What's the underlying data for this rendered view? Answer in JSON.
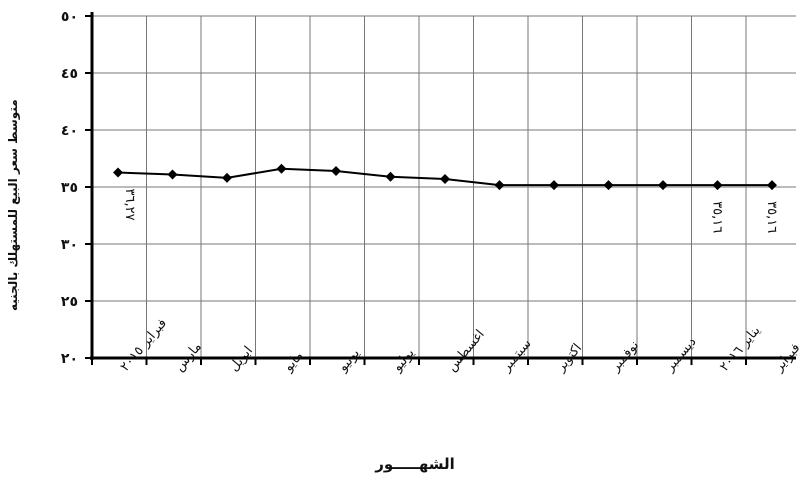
{
  "chart_data": {
    "type": "line",
    "ylabel": "متوسط سعر البيع للمستهلك بالجنيه",
    "xlabel": "الشهـــــور",
    "ylim": [
      20,
      50
    ],
    "yticks": [
      "٢٠",
      "٢٥",
      "٣٠",
      "٣٥",
      "٤٠",
      "٤٥",
      "٥٠"
    ],
    "categories": [
      "فبراير ٢٠١٥",
      "مارس",
      "ابريل",
      "مايو",
      "يونيو",
      "يوليو",
      "اغسطس",
      "سبتمبر",
      "اكتوبر",
      "نوفمبر",
      "ديسمبر",
      "يناير ٢٠١٦",
      "فبراير"
    ],
    "values": [
      36.27,
      36.1,
      35.8,
      36.6,
      36.4,
      35.9,
      35.7,
      35.16,
      35.16,
      35.16,
      35.16,
      35.16,
      35.16
    ],
    "annotations": [
      {
        "index": 0,
        "text": "٣٦,٢٧"
      },
      {
        "index": 11,
        "text": "٣٥,١٦"
      },
      {
        "index": 12,
        "text": "٣٥,١٦"
      }
    ],
    "grid": true,
    "line_color": "#000000"
  }
}
